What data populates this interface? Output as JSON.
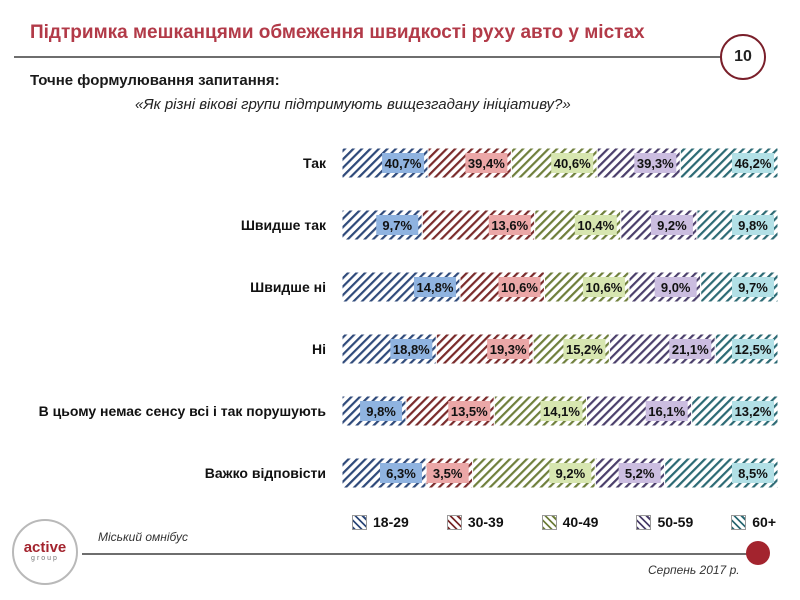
{
  "header": {
    "title": "Підтримка мешканцями обмеження швидкості руху авто у містах",
    "page_number": "10"
  },
  "question": {
    "label": "Точне формулювання запитання:",
    "text": "«Як різні вікові групи підтримують вищезгадану ініціативу?»"
  },
  "chart_data": {
    "type": "bar",
    "orientation": "horizontal",
    "stacked": true,
    "categories": [
      "Так",
      "Швидше так",
      "Швидше ні",
      "Ні",
      "В цьому немає сенсу всі і так порушують",
      "Важко відповісти"
    ],
    "series": [
      {
        "name": "18-29",
        "values": [
          40.7,
          9.7,
          14.8,
          18.8,
          9.8,
          6.3
        ],
        "color": "#8fb3e0",
        "hatch": "#2f4a7a"
      },
      {
        "name": "30-39",
        "values": [
          39.4,
          13.6,
          10.6,
          19.3,
          13.5,
          3.5
        ],
        "color": "#eba7a7",
        "hatch": "#7a2b2b"
      },
      {
        "name": "40-49",
        "values": [
          40.6,
          10.4,
          10.6,
          15.2,
          14.1,
          9.2
        ],
        "color": "#d7e6b0",
        "hatch": "#6f7f3c"
      },
      {
        "name": "50-59",
        "values": [
          39.3,
          9.2,
          9.0,
          21.1,
          16.1,
          5.2
        ],
        "color": "#cbbde0",
        "hatch": "#4b3f6b"
      },
      {
        "name": "60+",
        "values": [
          46.2,
          9.8,
          9.7,
          12.5,
          13.2,
          8.5
        ],
        "color": "#b2e0e6",
        "hatch": "#2c6a74"
      }
    ],
    "value_suffix": "%"
  },
  "legend": {
    "items": [
      "18-29",
      "30-39",
      "40-49",
      "50-59",
      "60+"
    ]
  },
  "footer": {
    "source": "Міський омнібус",
    "date": "Серпень 2017 р.",
    "logo_text": "active",
    "logo_sub": "group"
  }
}
